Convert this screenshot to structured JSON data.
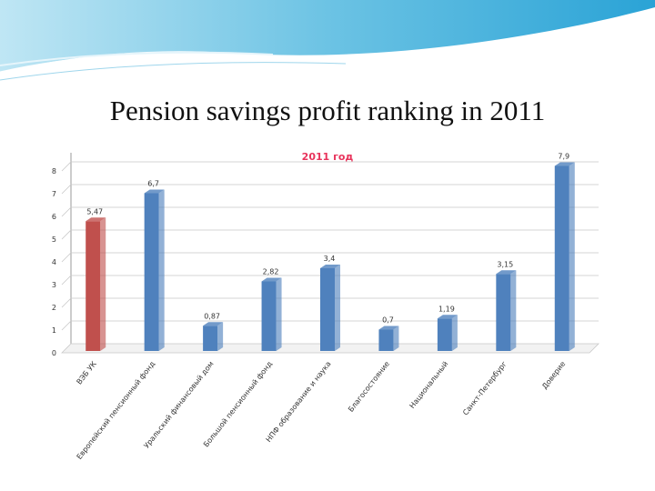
{
  "slide": {
    "title": "Pension savings profit ranking in 2011"
  },
  "colors": {
    "accent_bar": "#c0504d",
    "bar": "#4f81bd",
    "chart_title": "#e8335b"
  },
  "chart_data": {
    "type": "bar",
    "title": "2011 год",
    "categories": [
      "ВЭБ УК",
      "Европейский пенсионный фонд",
      "Уральский финансовый дом",
      "Большой пенсионный фонд",
      "НПФ образование и наука",
      "Благосостояние",
      "Национальный",
      "Санкт-Петербург",
      "Доверие"
    ],
    "values": [
      5.47,
      6.7,
      0.87,
      2.82,
      3.4,
      0.7,
      1.19,
      3.15,
      7.9
    ],
    "value_labels": [
      "5,47",
      "6,7",
      "0,87",
      "2,82",
      "3,4",
      "0,7",
      "1,19",
      "3,15",
      "7,9"
    ],
    "highlight_index": 0,
    "ylim": [
      0,
      8
    ],
    "yticks": [
      "0",
      "1",
      "2",
      "3",
      "4",
      "5",
      "6",
      "7",
      "8"
    ],
    "grid": true,
    "legend": "none"
  }
}
